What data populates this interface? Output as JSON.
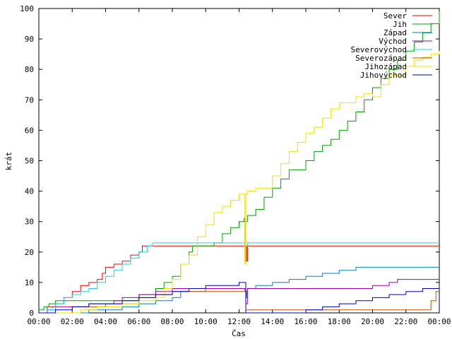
{
  "chart_data": {
    "type": "line",
    "xlabel": "Čas",
    "ylabel": "krát",
    "xlim": [
      0,
      24
    ],
    "ylim": [
      0,
      100
    ],
    "grid": false,
    "legend_position": "top-right",
    "x_tick_labels": [
      "00:00",
      "02:00",
      "04:00",
      "06:00",
      "08:00",
      "10:00",
      "12:00",
      "14:00",
      "16:00",
      "18:00",
      "20:00",
      "22:00",
      "00:00"
    ],
    "y_tick_labels": [
      "0",
      "10",
      "20",
      "30",
      "40",
      "50",
      "60",
      "70",
      "80",
      "90",
      "100"
    ],
    "series": [
      {
        "name": "Sever",
        "color": "#ff0000",
        "points": [
          [
            0,
            0
          ],
          [
            0.5,
            2
          ],
          [
            1,
            3
          ],
          [
            1.5,
            5
          ],
          [
            2,
            7
          ],
          [
            2.5,
            9
          ],
          [
            3,
            10
          ],
          [
            3.5,
            11
          ],
          [
            3.8,
            13
          ],
          [
            4,
            15
          ],
          [
            4.5,
            16
          ],
          [
            5,
            17
          ],
          [
            5.5,
            19
          ],
          [
            6,
            20
          ],
          [
            6.2,
            22
          ],
          [
            12.4,
            22
          ],
          [
            12.45,
            17
          ],
          [
            12.5,
            22
          ],
          [
            24,
            22
          ]
        ]
      },
      {
        "name": "Jih",
        "color": "#00a000",
        "points": [
          [
            0,
            1
          ],
          [
            0.3,
            2
          ],
          [
            0.6,
            3
          ],
          [
            1,
            4
          ],
          [
            6,
            6
          ],
          [
            7,
            8
          ],
          [
            7.5,
            10
          ],
          [
            8,
            12
          ],
          [
            8.5,
            16
          ],
          [
            9,
            20
          ],
          [
            9.2,
            22
          ],
          [
            10.5,
            23
          ],
          [
            11,
            26
          ],
          [
            11.5,
            28
          ],
          [
            12,
            30
          ],
          [
            12.3,
            31
          ],
          [
            12.35,
            17
          ],
          [
            12.4,
            30
          ],
          [
            12.5,
            32
          ],
          [
            13,
            34
          ],
          [
            13.5,
            38
          ],
          [
            14,
            41
          ],
          [
            14.5,
            44
          ],
          [
            15,
            47
          ],
          [
            16,
            50
          ],
          [
            16.5,
            53
          ],
          [
            17,
            55
          ],
          [
            17.5,
            57
          ],
          [
            18,
            60
          ],
          [
            18.5,
            63
          ],
          [
            19,
            66
          ],
          [
            19.5,
            70
          ],
          [
            20,
            74
          ],
          [
            20.5,
            77
          ],
          [
            21,
            80
          ],
          [
            21.5,
            83
          ],
          [
            22,
            86
          ],
          [
            22.5,
            89
          ],
          [
            23,
            92
          ],
          [
            23.5,
            95
          ],
          [
            24,
            99
          ]
        ]
      },
      {
        "name": "Západ",
        "color": "#0080c0",
        "points": [
          [
            0,
            0
          ],
          [
            1,
            0
          ],
          [
            2,
            0
          ],
          [
            3,
            1
          ],
          [
            5,
            2
          ],
          [
            6,
            3
          ],
          [
            7,
            4
          ],
          [
            8,
            5
          ],
          [
            8.5,
            7
          ],
          [
            10,
            8
          ],
          [
            11,
            8
          ],
          [
            12,
            8
          ],
          [
            12.35,
            7
          ],
          [
            12.45,
            5
          ],
          [
            12.5,
            8
          ],
          [
            13,
            9
          ],
          [
            14,
            10
          ],
          [
            15,
            11
          ],
          [
            16,
            12
          ],
          [
            17,
            13
          ],
          [
            18,
            14
          ],
          [
            19,
            15
          ],
          [
            24,
            15
          ]
        ]
      },
      {
        "name": "Východ",
        "color": "#a000a0",
        "points": [
          [
            0,
            0
          ],
          [
            0.5,
            1
          ],
          [
            1,
            2
          ],
          [
            3,
            3
          ],
          [
            4.5,
            4
          ],
          [
            5,
            5
          ],
          [
            6,
            6
          ],
          [
            7,
            7
          ],
          [
            8,
            8
          ],
          [
            12.3,
            8
          ],
          [
            12.4,
            3
          ],
          [
            12.5,
            8
          ],
          [
            20,
            9
          ],
          [
            21,
            10
          ],
          [
            21.5,
            11
          ],
          [
            24,
            11
          ]
        ]
      },
      {
        "name": "Severovýchod",
        "color": "#20d0e0",
        "points": [
          [
            0,
            0
          ],
          [
            0.5,
            1
          ],
          [
            1,
            3
          ],
          [
            1.5,
            5
          ],
          [
            2,
            6
          ],
          [
            2.5,
            7
          ],
          [
            3,
            8
          ],
          [
            3.5,
            10
          ],
          [
            4,
            12
          ],
          [
            4.5,
            14
          ],
          [
            5,
            16
          ],
          [
            5.5,
            18
          ],
          [
            6,
            20
          ],
          [
            6.5,
            22
          ],
          [
            6.8,
            23
          ],
          [
            12.3,
            23
          ],
          [
            12.4,
            22
          ],
          [
            12.5,
            23
          ],
          [
            24,
            23
          ]
        ]
      },
      {
        "name": "Severozápad",
        "color": "#c05000",
        "points": [
          [
            0,
            0
          ],
          [
            2,
            2
          ],
          [
            4,
            3
          ],
          [
            6,
            5
          ],
          [
            7,
            6
          ],
          [
            8,
            7
          ],
          [
            12.3,
            7
          ],
          [
            12.4,
            1
          ],
          [
            12.5,
            1
          ],
          [
            20,
            1
          ],
          [
            23,
            1
          ],
          [
            23.5,
            4
          ],
          [
            23.8,
            7
          ],
          [
            24,
            7
          ]
        ]
      },
      {
        "name": "Jihozápad",
        "color": "#f0e000",
        "points": [
          [
            0,
            0
          ],
          [
            1.5,
            0
          ],
          [
            2.5,
            1
          ],
          [
            3.5,
            2
          ],
          [
            5,
            3
          ],
          [
            6,
            4
          ],
          [
            7,
            5
          ],
          [
            7.5,
            8
          ],
          [
            8,
            11
          ],
          [
            8.5,
            16
          ],
          [
            9,
            19
          ],
          [
            9.5,
            25
          ],
          [
            10,
            29
          ],
          [
            10.5,
            33
          ],
          [
            11,
            35
          ],
          [
            11.5,
            37
          ],
          [
            12,
            39
          ],
          [
            12.3,
            39
          ],
          [
            12.35,
            16
          ],
          [
            12.4,
            39
          ],
          [
            12.5,
            40
          ],
          [
            13,
            41
          ],
          [
            14,
            45
          ],
          [
            14.5,
            49
          ],
          [
            15,
            53
          ],
          [
            15.5,
            56
          ],
          [
            16,
            59
          ],
          [
            16.5,
            61
          ],
          [
            17,
            64
          ],
          [
            17.5,
            67
          ],
          [
            18,
            69
          ],
          [
            19,
            71
          ],
          [
            19.5,
            72
          ],
          [
            20,
            71
          ],
          [
            20.5,
            75
          ],
          [
            21,
            78
          ],
          [
            22,
            81
          ],
          [
            22.5,
            83
          ],
          [
            23,
            84
          ],
          [
            23.5,
            85
          ],
          [
            24,
            86
          ]
        ]
      },
      {
        "name": "Jihovýchod",
        "color": "#0000c0",
        "points": [
          [
            0,
            0
          ],
          [
            1,
            1
          ],
          [
            2,
            2
          ],
          [
            3,
            3
          ],
          [
            5,
            4
          ],
          [
            6,
            5
          ],
          [
            7,
            6
          ],
          [
            8,
            7
          ],
          [
            9,
            8
          ],
          [
            10,
            9
          ],
          [
            12,
            10
          ],
          [
            12.3,
            10
          ],
          [
            12.4,
            0
          ],
          [
            12.5,
            0
          ],
          [
            15,
            0
          ],
          [
            16,
            1
          ],
          [
            17,
            2
          ],
          [
            18,
            3
          ],
          [
            19,
            4
          ],
          [
            20,
            5
          ],
          [
            21,
            6
          ],
          [
            22,
            7
          ],
          [
            23,
            8
          ],
          [
            24,
            8
          ]
        ]
      }
    ]
  }
}
